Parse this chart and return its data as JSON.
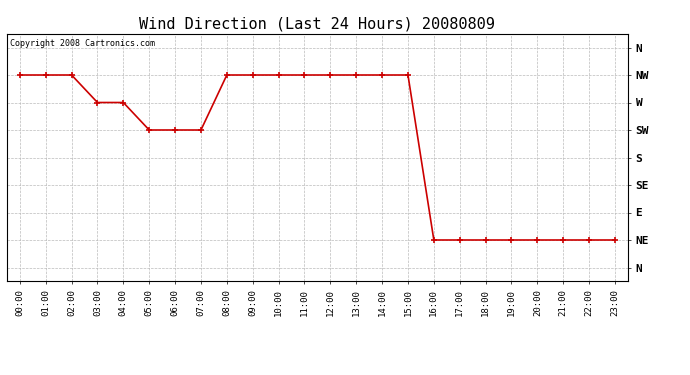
{
  "title": "Wind Direction (Last 24 Hours) 20080809",
  "copyright_text": "Copyright 2008 Cartronics.com",
  "background_color": "#ffffff",
  "line_color": "#cc0000",
  "grid_color": "#bbbbbb",
  "y_labels": [
    "N",
    "NE",
    "E",
    "SE",
    "S",
    "SW",
    "W",
    "NW",
    "N"
  ],
  "y_values": [
    0,
    1,
    2,
    3,
    4,
    5,
    6,
    7,
    8
  ],
  "x_labels": [
    "00:00",
    "01:00",
    "02:00",
    "03:00",
    "04:00",
    "05:00",
    "06:00",
    "07:00",
    "08:00",
    "09:00",
    "10:00",
    "11:00",
    "12:00",
    "13:00",
    "14:00",
    "15:00",
    "16:00",
    "17:00",
    "18:00",
    "19:00",
    "20:00",
    "21:00",
    "22:00",
    "23:00"
  ],
  "wind_data": [
    7,
    7,
    7,
    6,
    6,
    5,
    5,
    5,
    7,
    7,
    7,
    7,
    7,
    7,
    7,
    7,
    1,
    1,
    1,
    1,
    1,
    1,
    1,
    1
  ],
  "ylim": [
    -0.5,
    8.5
  ],
  "figsize": [
    6.9,
    3.75
  ],
  "dpi": 100,
  "title_fontsize": 11,
  "tick_fontsize": 6.5,
  "ytick_fontsize": 8,
  "copyright_fontsize": 6
}
